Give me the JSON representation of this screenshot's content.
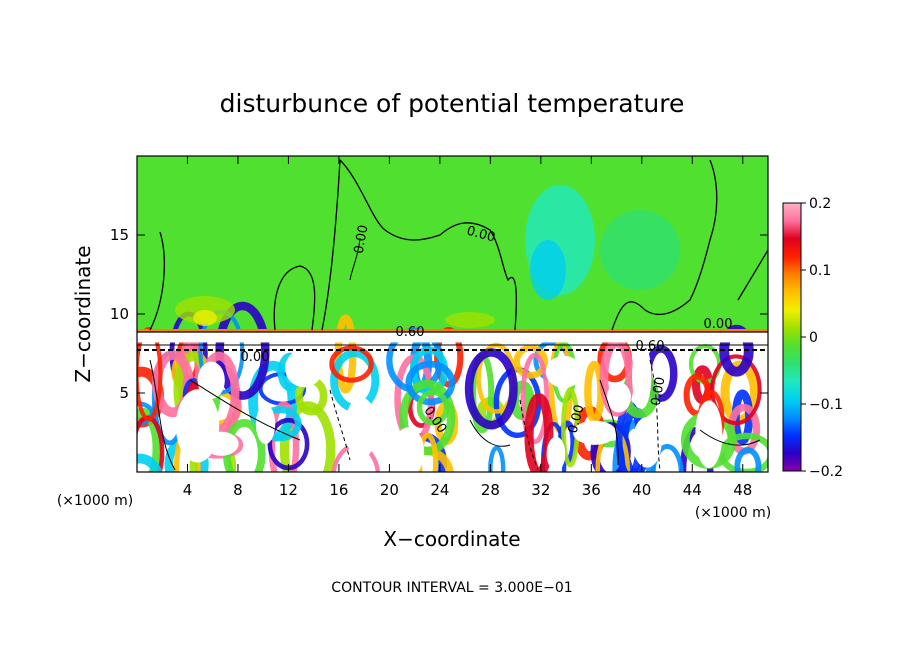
{
  "chart_data": {
    "type": "heatmap",
    "title": "disturbunce of potential temperature",
    "xlabel": "X−coordinate",
    "ylabel": "Z−coordinate",
    "x_unit_left": "(×1000 m)",
    "x_unit_right": "(×1000 m)",
    "xlim": [
      0,
      50
    ],
    "ylim": [
      0,
      20
    ],
    "x_ticks": [
      4,
      8,
      12,
      16,
      20,
      24,
      28,
      32,
      36,
      40,
      44,
      48
    ],
    "x_tick_labels": [
      "4",
      "8",
      "12",
      "16",
      "20",
      "24",
      "28",
      "32",
      "36",
      "40",
      "44",
      "48"
    ],
    "y_ticks": [
      5,
      10,
      15
    ],
    "y_tick_labels": [
      "5",
      "10",
      "15"
    ],
    "colorbar": {
      "range": [
        -0.2,
        0.2
      ],
      "ticks": [
        0.2,
        0.1,
        0,
        -0.1,
        -0.2
      ],
      "tick_labels": [
        "0.2",
        "0.1",
        "0",
        "−0.1",
        "−0.2"
      ],
      "colors": [
        "#8a00a8",
        "#2a00c8",
        "#0030ff",
        "#0090ff",
        "#00d0f0",
        "#20e8c0",
        "#30e070",
        "#50e030",
        "#a0e000",
        "#f0f000",
        "#ffc000",
        "#ff8000",
        "#ff2000",
        "#e00020",
        "#ff70a0",
        "#ffb0c0"
      ]
    },
    "contour_labels": [
      "0.00",
      "0.00",
      "0.60",
      "0.00",
      "0.60",
      "0.00",
      "0.00",
      "0.00",
      "0.00"
    ],
    "footer": "CONTOUR INTERVAL = 3.000E−01"
  },
  "colors": {
    "upper_fill": "#50e030",
    "layer_white": "#ffffff",
    "warm": "#ff2000",
    "cold": "#0030ff"
  }
}
